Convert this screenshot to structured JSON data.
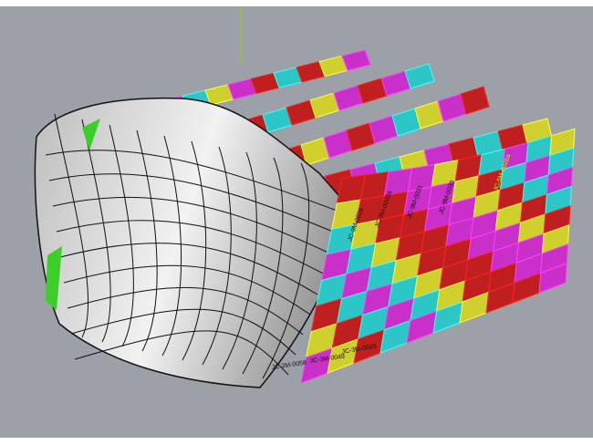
{
  "viewport": {
    "background": "#9ca1a8",
    "axis_color": "#8fd400"
  },
  "panel_colors": {
    "red": "#c01f1f",
    "magenta": "#c92fc9",
    "cyan": "#2cc6c6",
    "yellow": "#cfcf2e",
    "shell": "#d2d2d2"
  },
  "panel_labels": [
    "JC-9M-0029",
    "JC-9M-0028a",
    "JC-9M-0031",
    "JC-9M-0030",
    "JC-5M-0026a",
    "JC-3M-0058",
    "JC-3M-0049",
    "JC-3M-0026"
  ]
}
